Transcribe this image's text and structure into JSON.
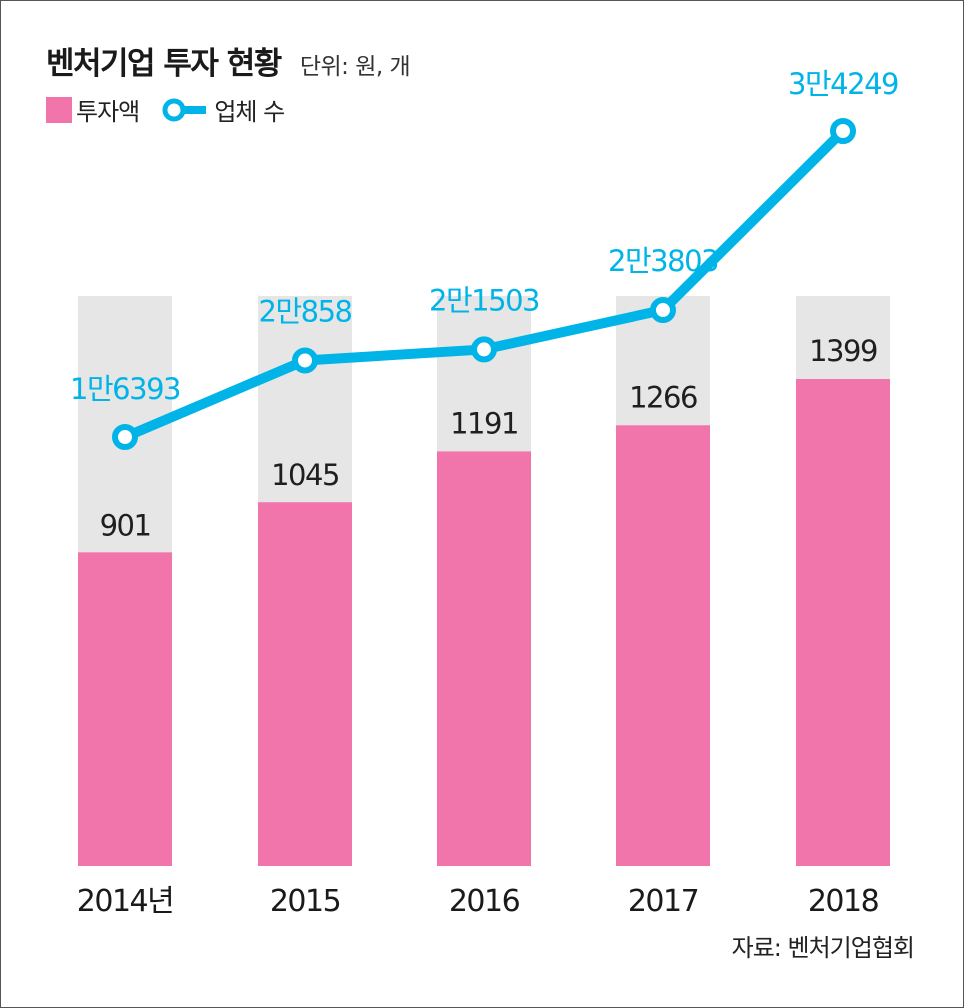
{
  "chart_data": {
    "type": "bar",
    "title": "벤처기업 투자 현황",
    "unit": "단위: 원, 개",
    "categories": [
      "2014년",
      "2015",
      "2016",
      "2017",
      "2018"
    ],
    "series": [
      {
        "name": "투자액",
        "type": "bar",
        "color": "#f174aa",
        "values": [
          901,
          1045,
          1191,
          1266,
          1399
        ],
        "labels": [
          "901",
          "1045",
          "1191",
          "1266",
          "1399"
        ]
      },
      {
        "name": "업체 수",
        "type": "line",
        "color": "#00b4e8",
        "values": [
          16393,
          20858,
          21503,
          23803,
          34249
        ],
        "labels": [
          "1만6393",
          "2만858",
          "2만1503",
          "2만3803",
          "3만4249"
        ]
      }
    ],
    "bar_background_color": "#e6e6e6",
    "legend_position": "top-left",
    "grid": false,
    "source": "자료: 벤처기업협회"
  }
}
